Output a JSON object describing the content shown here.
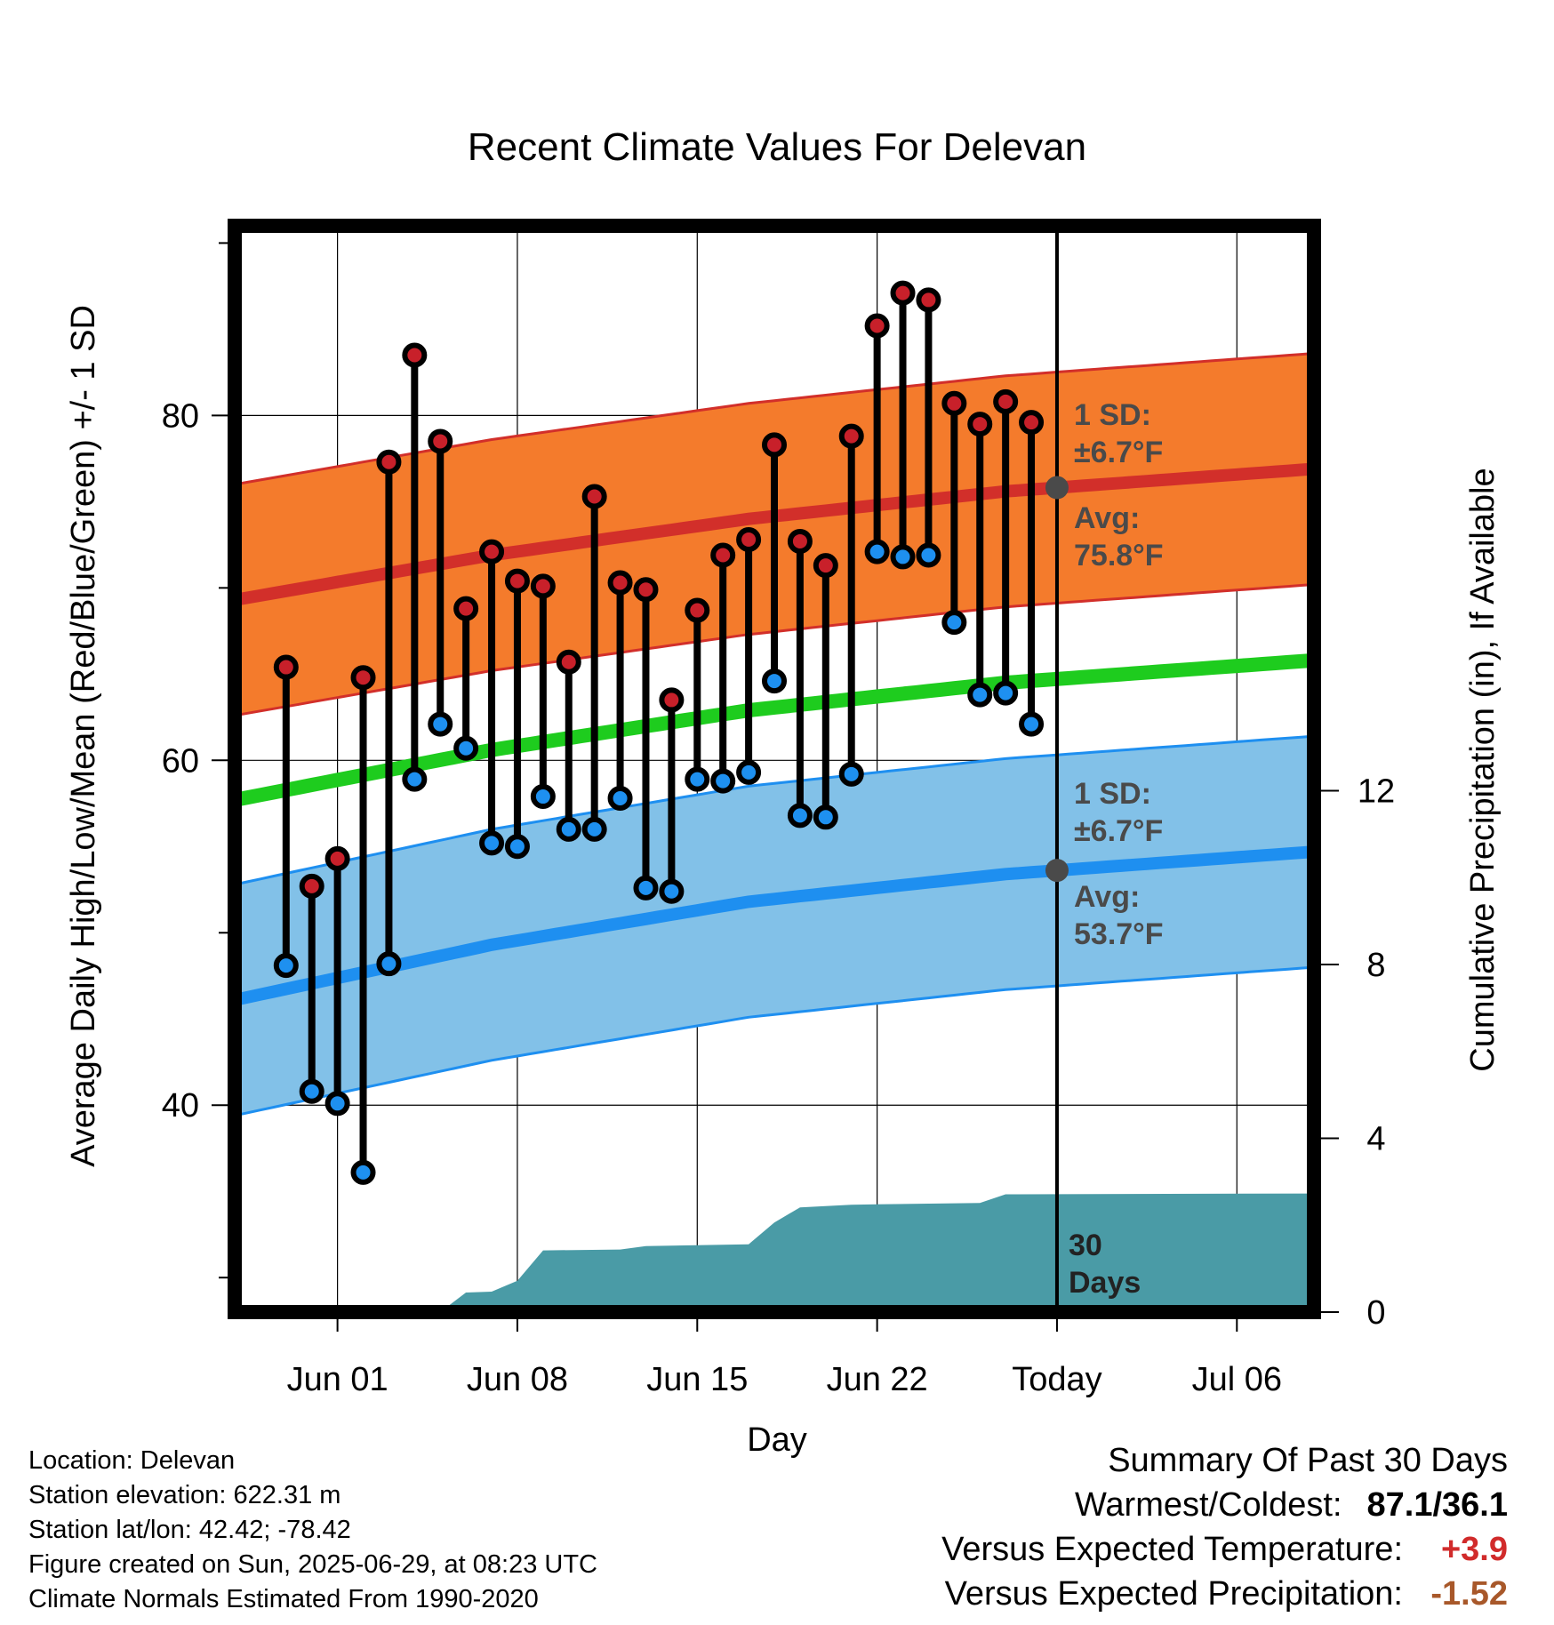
{
  "chart_data": {
    "type": "range",
    "title": "Recent Climate Values For Delevan",
    "xlabel": "Day",
    "ylabel_left": "Average Daily High/Low/Mean (Red/Blue/Green) +/- 1 SD",
    "ylabel_right": "Cumulative Precipitation (in), If Available",
    "x_ticks": [
      "Jun 01",
      "Jun 08",
      "Jun 15",
      "Jun 22",
      "Today",
      "Jul 06"
    ],
    "y_ticks_left": [
      "40",
      "60",
      "80"
    ],
    "y_ticks_right": [
      "0",
      "4",
      "8",
      "12"
    ],
    "ylim_left": [
      28,
      91
    ],
    "ylim_right": [
      0,
      25
    ],
    "x_range": [
      "2025-05-28",
      "2025-07-09"
    ],
    "today": "2025-06-29",
    "colors": {
      "high_band": "#f47b2c",
      "high_line": "#d22f2a",
      "low_band": "#82c1e8",
      "low_line": "#1e8ff0",
      "mean_line": "#1ecc1e",
      "precip": "#4a9ba6",
      "high_point": "#c8202a",
      "low_point": "#1e90f0"
    },
    "normals": {
      "dates": [
        "2025-05-28",
        "2025-06-07",
        "2025-06-17",
        "2025-06-27",
        "2025-07-09"
      ],
      "avg_high": [
        69.3,
        71.9,
        74.0,
        75.6,
        76.9
      ],
      "avg_low": [
        46.1,
        49.3,
        51.8,
        53.4,
        54.7
      ],
      "avg_mean": [
        57.7,
        60.6,
        62.9,
        64.5,
        65.8
      ],
      "sd": 6.7
    },
    "daily": {
      "dates": [
        "2025-05-30",
        "2025-05-31",
        "2025-06-01",
        "2025-06-02",
        "2025-06-03",
        "2025-06-04",
        "2025-06-05",
        "2025-06-06",
        "2025-06-07",
        "2025-06-08",
        "2025-06-09",
        "2025-06-10",
        "2025-06-11",
        "2025-06-12",
        "2025-06-13",
        "2025-06-14",
        "2025-06-15",
        "2025-06-16",
        "2025-06-17",
        "2025-06-18",
        "2025-06-19",
        "2025-06-20",
        "2025-06-21",
        "2025-06-22",
        "2025-06-23",
        "2025-06-24",
        "2025-06-25",
        "2025-06-26",
        "2025-06-27",
        "2025-06-28"
      ],
      "high": [
        65.4,
        52.7,
        54.3,
        64.8,
        77.3,
        83.5,
        78.5,
        68.8,
        72.1,
        70.4,
        70.1,
        65.7,
        75.3,
        70.3,
        69.9,
        63.5,
        68.7,
        71.9,
        72.8,
        78.3,
        72.7,
        71.3,
        78.8,
        85.2,
        87.1,
        86.7,
        80.7,
        79.5,
        80.8,
        79.6
      ],
      "low": [
        48.1,
        40.8,
        40.1,
        36.1,
        48.2,
        58.9,
        62.1,
        60.7,
        55.2,
        55.0,
        57.9,
        56.0,
        56.0,
        57.8,
        52.6,
        52.4,
        58.9,
        58.8,
        59.3,
        64.6,
        56.8,
        56.7,
        59.2,
        72.1,
        71.8,
        71.9,
        68.0,
        63.8,
        63.9,
        62.1
      ]
    },
    "precip": {
      "dates": [
        "2025-06-04",
        "2025-06-05",
        "2025-06-06",
        "2025-06-07",
        "2025-06-08",
        "2025-06-09",
        "2025-06-12",
        "2025-06-13",
        "2025-06-17",
        "2025-06-18",
        "2025-06-19",
        "2025-06-20",
        "2025-06-21",
        "2025-06-22",
        "2025-06-26",
        "2025-06-27",
        "2025-07-09"
      ],
      "cumulative": [
        0.0,
        0.0,
        0.45,
        0.47,
        0.72,
        1.42,
        1.44,
        1.52,
        1.56,
        2.06,
        2.41,
        2.44,
        2.47,
        2.48,
        2.51,
        2.71,
        2.73
      ]
    },
    "annotations": {
      "high_sd": "1 SD:",
      "high_sd_value": "±6.7°F",
      "high_avg": "Avg:",
      "high_avg_value": "75.8°F",
      "low_sd": "1 SD:",
      "low_sd_value": "±6.7°F",
      "low_avg": "Avg:",
      "low_avg_value": "53.7°F",
      "days": "30",
      "days_unit": "Days"
    }
  },
  "metadata": {
    "location": "Location: Delevan",
    "elevation": "Station elevation: 622.31 m",
    "latlon": "Station lat/lon: 42.42; -78.42",
    "created": "Figure created on Sun, 2025-06-29, at 08:23 UTC",
    "normals": "Climate Normals Estimated From 1990-2020"
  },
  "summary": {
    "heading": "Summary Of Past 30 Days",
    "warmest_label": "Warmest/Coldest:",
    "warmest_value": "87.1/36.1",
    "temp_label": "Versus Expected Temperature:",
    "temp_value": "+3.9",
    "temp_color": "#d12b2b",
    "precip_label": "Versus Expected Precipitation:",
    "precip_value": "-1.52",
    "precip_color": "#a8582a"
  }
}
